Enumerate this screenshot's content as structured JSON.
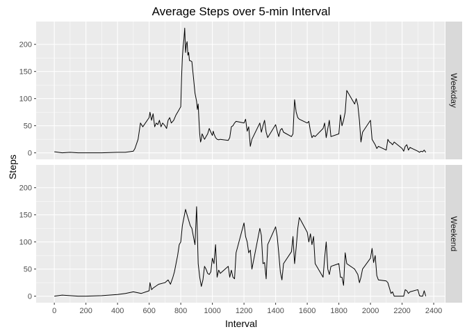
{
  "chart_data": {
    "type": "line",
    "title": "Average Steps over 5-min Interval",
    "xlabel": "Interval",
    "ylabel": "Steps",
    "xlim": [
      -115,
      2470
    ],
    "ylim": [
      -12,
      242
    ],
    "x_ticks": [
      0,
      200,
      400,
      600,
      800,
      1000,
      1200,
      1400,
      1600,
      1800,
      2000,
      2200,
      2400
    ],
    "y_ticks": [
      0,
      50,
      100,
      150,
      200
    ],
    "grid": true,
    "panel_background": "#ebebeb",
    "strip_background": "#d9d9d9",
    "line_color": "#000000",
    "panels": [
      {
        "label": "Weekday",
        "x": [
          0,
          50,
          100,
          150,
          200,
          300,
          400,
          450,
          500,
          510,
          530,
          545,
          560,
          600,
          605,
          615,
          625,
          635,
          645,
          655,
          665,
          675,
          685,
          700,
          710,
          720,
          730,
          740,
          755,
          770,
          780,
          790,
          800,
          805,
          810,
          815,
          820,
          825,
          830,
          835,
          840,
          845,
          850,
          855,
          860,
          870,
          880,
          890,
          900,
          905,
          910,
          915,
          920,
          925,
          930,
          935,
          940,
          945,
          950,
          960,
          970,
          980,
          990,
          1000,
          1005,
          1010,
          1020,
          1030,
          1040,
          1050,
          1100,
          1110,
          1120,
          1130,
          1140,
          1150,
          1200,
          1210,
          1220,
          1230,
          1240,
          1250,
          1300,
          1310,
          1320,
          1330,
          1340,
          1350,
          1400,
          1410,
          1420,
          1430,
          1440,
          1450,
          1500,
          1510,
          1520,
          1530,
          1540,
          1550,
          1600,
          1610,
          1620,
          1630,
          1640,
          1650,
          1700,
          1710,
          1720,
          1730,
          1740,
          1750,
          1800,
          1810,
          1820,
          1830,
          1840,
          1850,
          1900,
          1910,
          1920,
          1930,
          1940,
          1950,
          2000,
          2010,
          2020,
          2030,
          2040,
          2050,
          2100,
          2110,
          2120,
          2130,
          2140,
          2150,
          2200,
          2210,
          2220,
          2230,
          2240,
          2250,
          2300,
          2310,
          2320,
          2330,
          2340,
          2350
        ],
        "y": [
          2,
          0,
          1,
          0,
          0,
          0,
          1,
          1,
          3,
          8,
          25,
          55,
          48,
          65,
          75,
          60,
          72,
          48,
          55,
          52,
          60,
          48,
          55,
          50,
          45,
          60,
          65,
          55,
          60,
          70,
          75,
          80,
          85,
          140,
          175,
          195,
          210,
          230,
          185,
          200,
          205,
          180,
          185,
          170,
          170,
          168,
          140,
          110,
          95,
          80,
          90,
          60,
          35,
          20,
          25,
          35,
          32,
          28,
          25,
          30,
          35,
          45,
          38,
          32,
          40,
          35,
          28,
          25,
          24,
          25,
          23,
          28,
          48,
          50,
          55,
          58,
          55,
          62,
          40,
          48,
          12,
          25,
          55,
          38,
          50,
          60,
          38,
          28,
          52,
          40,
          30,
          42,
          45,
          38,
          30,
          35,
          98,
          75,
          65,
          62,
          55,
          58,
          40,
          28,
          32,
          30,
          45,
          55,
          28,
          45,
          60,
          30,
          35,
          70,
          50,
          60,
          75,
          115,
          90,
          100,
          88,
          60,
          20,
          38,
          60,
          25,
          20,
          15,
          8,
          12,
          5,
          25,
          20,
          18,
          15,
          20,
          8,
          3,
          12,
          15,
          5,
          10,
          3,
          1,
          3,
          2,
          5,
          1
        ],
        "line_color": "#000000"
      },
      {
        "label": "Weekend",
        "x": [
          0,
          50,
          100,
          150,
          200,
          300,
          400,
          450,
          500,
          550,
          600,
          605,
          615,
          625,
          640,
          660,
          700,
          720,
          735,
          750,
          760,
          770,
          780,
          790,
          800,
          810,
          820,
          830,
          840,
          850,
          860,
          870,
          880,
          890,
          900,
          910,
          920,
          930,
          940,
          950,
          960,
          970,
          980,
          990,
          1000,
          1010,
          1020,
          1030,
          1040,
          1050,
          1100,
          1110,
          1120,
          1130,
          1140,
          1150,
          1200,
          1210,
          1220,
          1230,
          1240,
          1250,
          1300,
          1310,
          1320,
          1330,
          1340,
          1350,
          1400,
          1410,
          1420,
          1430,
          1440,
          1450,
          1500,
          1510,
          1520,
          1530,
          1540,
          1550,
          1600,
          1610,
          1620,
          1630,
          1640,
          1650,
          1700,
          1710,
          1720,
          1730,
          1740,
          1750,
          1800,
          1810,
          1820,
          1830,
          1840,
          1850,
          1900,
          1910,
          1920,
          1930,
          1940,
          1950,
          2000,
          2010,
          2020,
          2030,
          2040,
          2050,
          2100,
          2110,
          2120,
          2130,
          2140,
          2150,
          2200,
          2210,
          2220,
          2230,
          2240,
          2250,
          2300,
          2310,
          2320,
          2330,
          2340,
          2350
        ],
        "y": [
          0,
          2,
          1,
          0,
          0,
          1,
          3,
          5,
          8,
          5,
          10,
          25,
          12,
          15,
          18,
          22,
          25,
          30,
          22,
          35,
          45,
          60,
          75,
          95,
          100,
          130,
          145,
          160,
          150,
          140,
          130,
          125,
          110,
          95,
          165,
          60,
          35,
          18,
          30,
          55,
          50,
          42,
          40,
          45,
          70,
          60,
          95,
          35,
          48,
          42,
          55,
          35,
          48,
          35,
          32,
          80,
          135,
          110,
          100,
          80,
          85,
          50,
          125,
          112,
          60,
          62,
          32,
          95,
          128,
          110,
          78,
          45,
          30,
          60,
          82,
          110,
          60,
          90,
          125,
          145,
          118,
          100,
          115,
          95,
          110,
          60,
          35,
          70,
          100,
          50,
          40,
          55,
          60,
          35,
          35,
          20,
          80,
          60,
          50,
          45,
          40,
          25,
          35,
          50,
          70,
          88,
          62,
          75,
          38,
          30,
          28,
          25,
          15,
          5,
          8,
          0,
          0,
          0,
          12,
          10,
          5,
          8,
          12,
          1,
          0,
          0,
          10,
          0
        ],
        "line_color": "#000000"
      }
    ]
  }
}
